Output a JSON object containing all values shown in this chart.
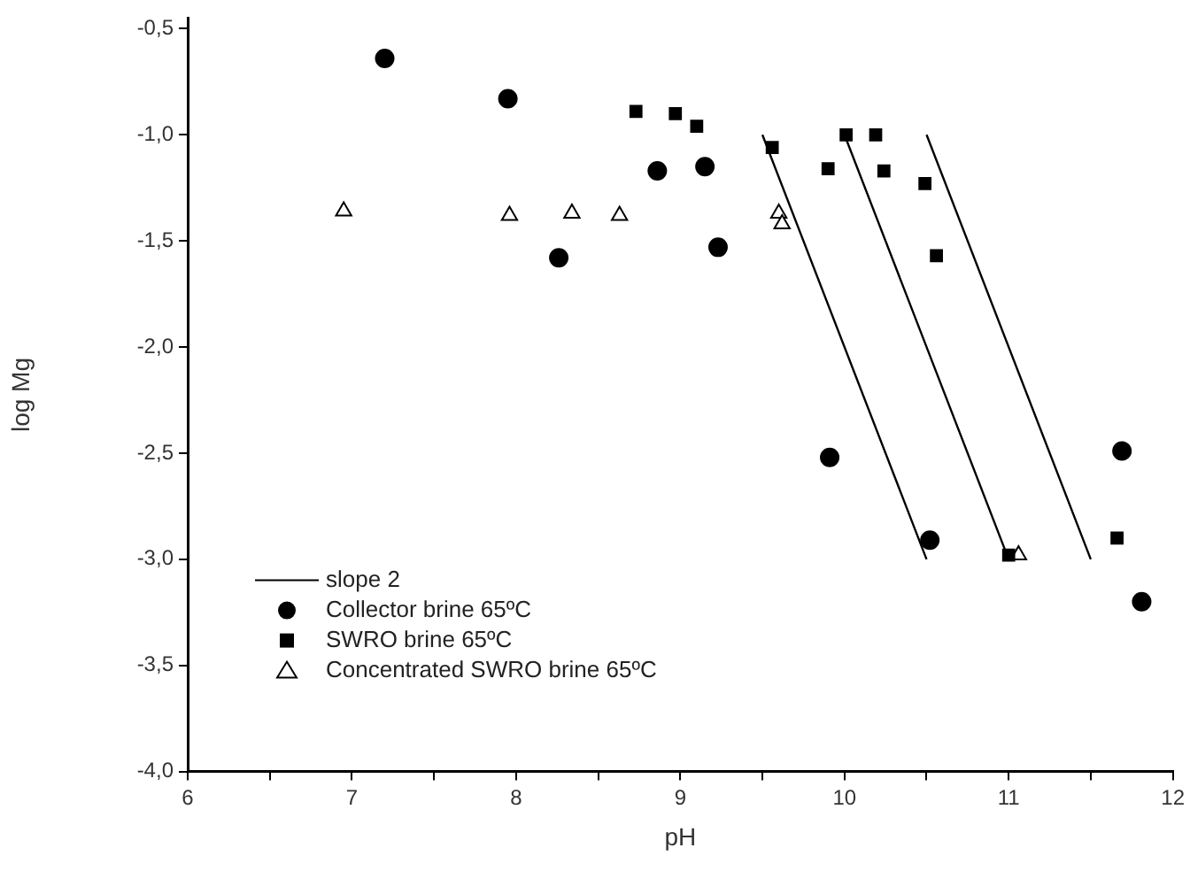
{
  "chart_data": {
    "type": "scatter",
    "xlabel": "pH",
    "ylabel": "log Mg",
    "xlim": [
      6,
      12
    ],
    "ylim": [
      -4,
      -0.45
    ],
    "xticks": [
      6,
      {
        "value": 6.5,
        "label": null
      },
      7,
      {
        "value": 7.5,
        "label": null
      },
      8,
      {
        "value": 8.5,
        "label": null
      },
      9,
      {
        "value": 9.5,
        "label": null
      },
      10,
      {
        "value": 10.5,
        "label": null
      },
      11,
      {
        "value": 11.5,
        "label": null
      },
      12
    ],
    "yticks": [
      {
        "value": -4,
        "label": "-4,0"
      },
      {
        "value": -3.5,
        "label": "-3,5"
      },
      {
        "value": -3,
        "label": "-3,0"
      },
      {
        "value": -2.5,
        "label": "-2,5"
      },
      {
        "value": -2,
        "label": "-2,0"
      },
      {
        "value": -1.5,
        "label": "-1,5"
      },
      {
        "value": -1,
        "label": "-1,0"
      },
      {
        "value": -0.5,
        "label": "-0,5"
      }
    ],
    "grid": false,
    "legend": "bottom left",
    "series": [
      {
        "name": "slope 2",
        "type": "line",
        "color": "#000000",
        "marker": "none",
        "line_style": "solid",
        "x": [
          9.5,
          10.5,
          null,
          10,
          11,
          null,
          10.5,
          11.5
        ],
        "values": [
          -1,
          -3,
          null,
          -1,
          -3,
          null,
          -1,
          -3
        ]
      },
      {
        "name": "Collector brine 65ºC",
        "color": "#000000",
        "marker": "circle",
        "x": [
          7.2,
          7.95,
          8.86,
          9.15,
          8.26,
          9.23,
          9.91,
          10.52,
          11.69,
          11.81
        ],
        "values": [
          -0.64,
          -0.83,
          -1.17,
          -1.15,
          -1.58,
          -1.53,
          -2.52,
          -2.91,
          -2.49,
          -3.2
        ]
      },
      {
        "name": "SWRO brine 65ºC",
        "color": "#000000",
        "marker": "square",
        "x": [
          8.73,
          8.97,
          9.1,
          9.56,
          9.9,
          10.01,
          10.19,
          10.24,
          10.49,
          10.56,
          11.66,
          11.0
        ],
        "values": [
          -0.89,
          -0.9,
          -0.96,
          -1.06,
          -1.16,
          -1.0,
          -1.0,
          -1.17,
          -1.23,
          -1.57,
          -2.9,
          -2.98
        ]
      },
      {
        "name": "Concentrated SWRO brine 65ºC",
        "color": "#000000",
        "marker": "triangle",
        "x": [
          6.95,
          7.96,
          8.34,
          8.63,
          9.6,
          9.62,
          11.06
        ],
        "values": [
          -1.36,
          -1.38,
          -1.37,
          -1.38,
          -1.37,
          -1.42,
          -2.98
        ]
      }
    ]
  }
}
